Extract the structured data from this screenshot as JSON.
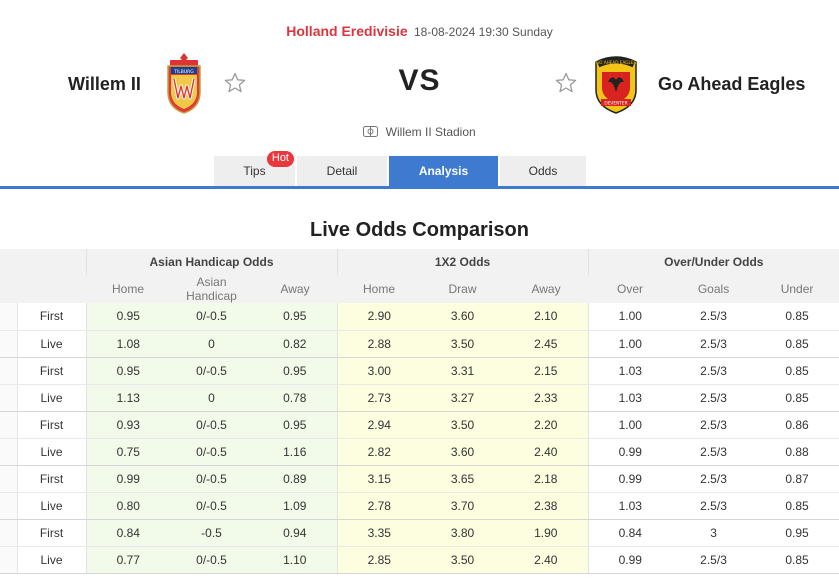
{
  "match": {
    "league": "Holland Eredivisie",
    "datetime": "18-08-2024 19:30 Sunday",
    "home_team": "Willem II",
    "away_team": "Go Ahead Eagles",
    "vs": "VS",
    "stadium": "Willem II Stadion",
    "home_logo_text": "TILBURG",
    "away_logo_text_top": "GO AHEAD EAGLES",
    "away_logo_text_bottom": "DEVENTER"
  },
  "tabs": [
    {
      "label": "Tips",
      "badge": "Hot"
    },
    {
      "label": "Detail"
    },
    {
      "label": "Analysis",
      "active": true
    },
    {
      "label": "Odds"
    }
  ],
  "section_title": "Live Odds Comparison",
  "table": {
    "groups": [
      "Asian Handicap Odds",
      "1X2 Odds",
      "Over/Under Odds"
    ],
    "columns": [
      "Home",
      "Asian Handicap",
      "Away",
      "Home",
      "Draw",
      "Away",
      "Over",
      "Goals",
      "Under"
    ],
    "rows": [
      {
        "type": "First",
        "v": [
          "0.95",
          "0/-0.5",
          "0.95",
          "2.90",
          "3.60",
          "2.10",
          "1.00",
          "2.5/3",
          "0.85"
        ]
      },
      {
        "type": "Live",
        "v": [
          "1.08",
          "0",
          "0.82",
          "2.88",
          "3.50",
          "2.45",
          "1.00",
          "2.5/3",
          "0.85"
        ]
      },
      {
        "type": "First",
        "v": [
          "0.95",
          "0/-0.5",
          "0.95",
          "3.00",
          "3.31",
          "2.15",
          "1.03",
          "2.5/3",
          "0.85"
        ]
      },
      {
        "type": "Live",
        "v": [
          "1.13",
          "0",
          "0.78",
          "2.73",
          "3.27",
          "2.33",
          "1.03",
          "2.5/3",
          "0.85"
        ]
      },
      {
        "type": "First",
        "v": [
          "0.93",
          "0/-0.5",
          "0.95",
          "2.94",
          "3.50",
          "2.20",
          "1.00",
          "2.5/3",
          "0.86"
        ]
      },
      {
        "type": "Live",
        "v": [
          "0.75",
          "0/-0.5",
          "1.16",
          "2.82",
          "3.60",
          "2.40",
          "0.99",
          "2.5/3",
          "0.88"
        ]
      },
      {
        "type": "First",
        "v": [
          "0.99",
          "0/-0.5",
          "0.89",
          "3.15",
          "3.65",
          "2.18",
          "0.99",
          "2.5/3",
          "0.87"
        ]
      },
      {
        "type": "Live",
        "v": [
          "0.80",
          "0/-0.5",
          "1.09",
          "2.78",
          "3.70",
          "2.38",
          "1.03",
          "2.5/3",
          "0.85"
        ]
      },
      {
        "type": "First",
        "v": [
          "0.84",
          "-0.5",
          "0.94",
          "3.35",
          "3.80",
          "1.90",
          "0.84",
          "3",
          "0.95"
        ]
      },
      {
        "type": "Live",
        "v": [
          "0.77",
          "0/-0.5",
          "1.10",
          "2.85",
          "3.50",
          "2.40",
          "0.99",
          "2.5/3",
          "0.85"
        ]
      }
    ]
  },
  "colors": {
    "accent": "#3d7ad0",
    "league": "#d9363e",
    "hot_badge": "#e8383d",
    "asian_bg": "#f2fbea",
    "x2_bg": "#fdfde0"
  },
  "icons": [
    "star-outline-icon",
    "stadium-icon"
  ]
}
